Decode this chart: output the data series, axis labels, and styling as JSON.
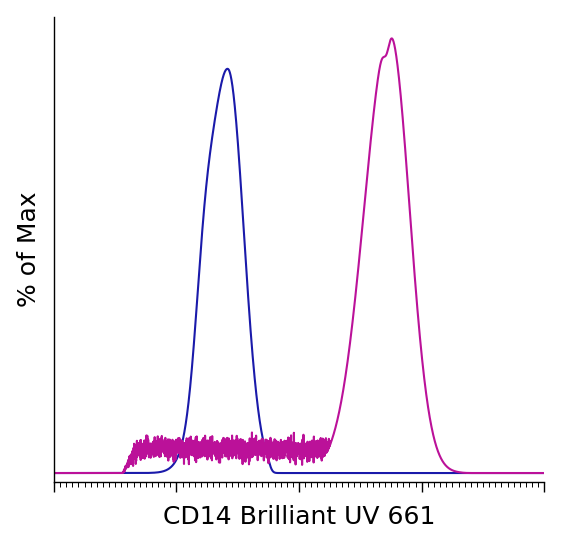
{
  "title": "",
  "xlabel": "CD14 Brilliant UV 661",
  "ylabel": "% of Max",
  "xlabel_fontsize": 18,
  "ylabel_fontsize": 18,
  "background_color": "#ffffff",
  "blue_color": "#1a1aaa",
  "magenta_color": "#bb1199",
  "line_width": 1.5,
  "xlim": [
    0,
    1
  ],
  "ylim": [
    -0.02,
    1.05
  ],
  "figsize": [
    5.61,
    5.46
  ],
  "dpi": 100
}
